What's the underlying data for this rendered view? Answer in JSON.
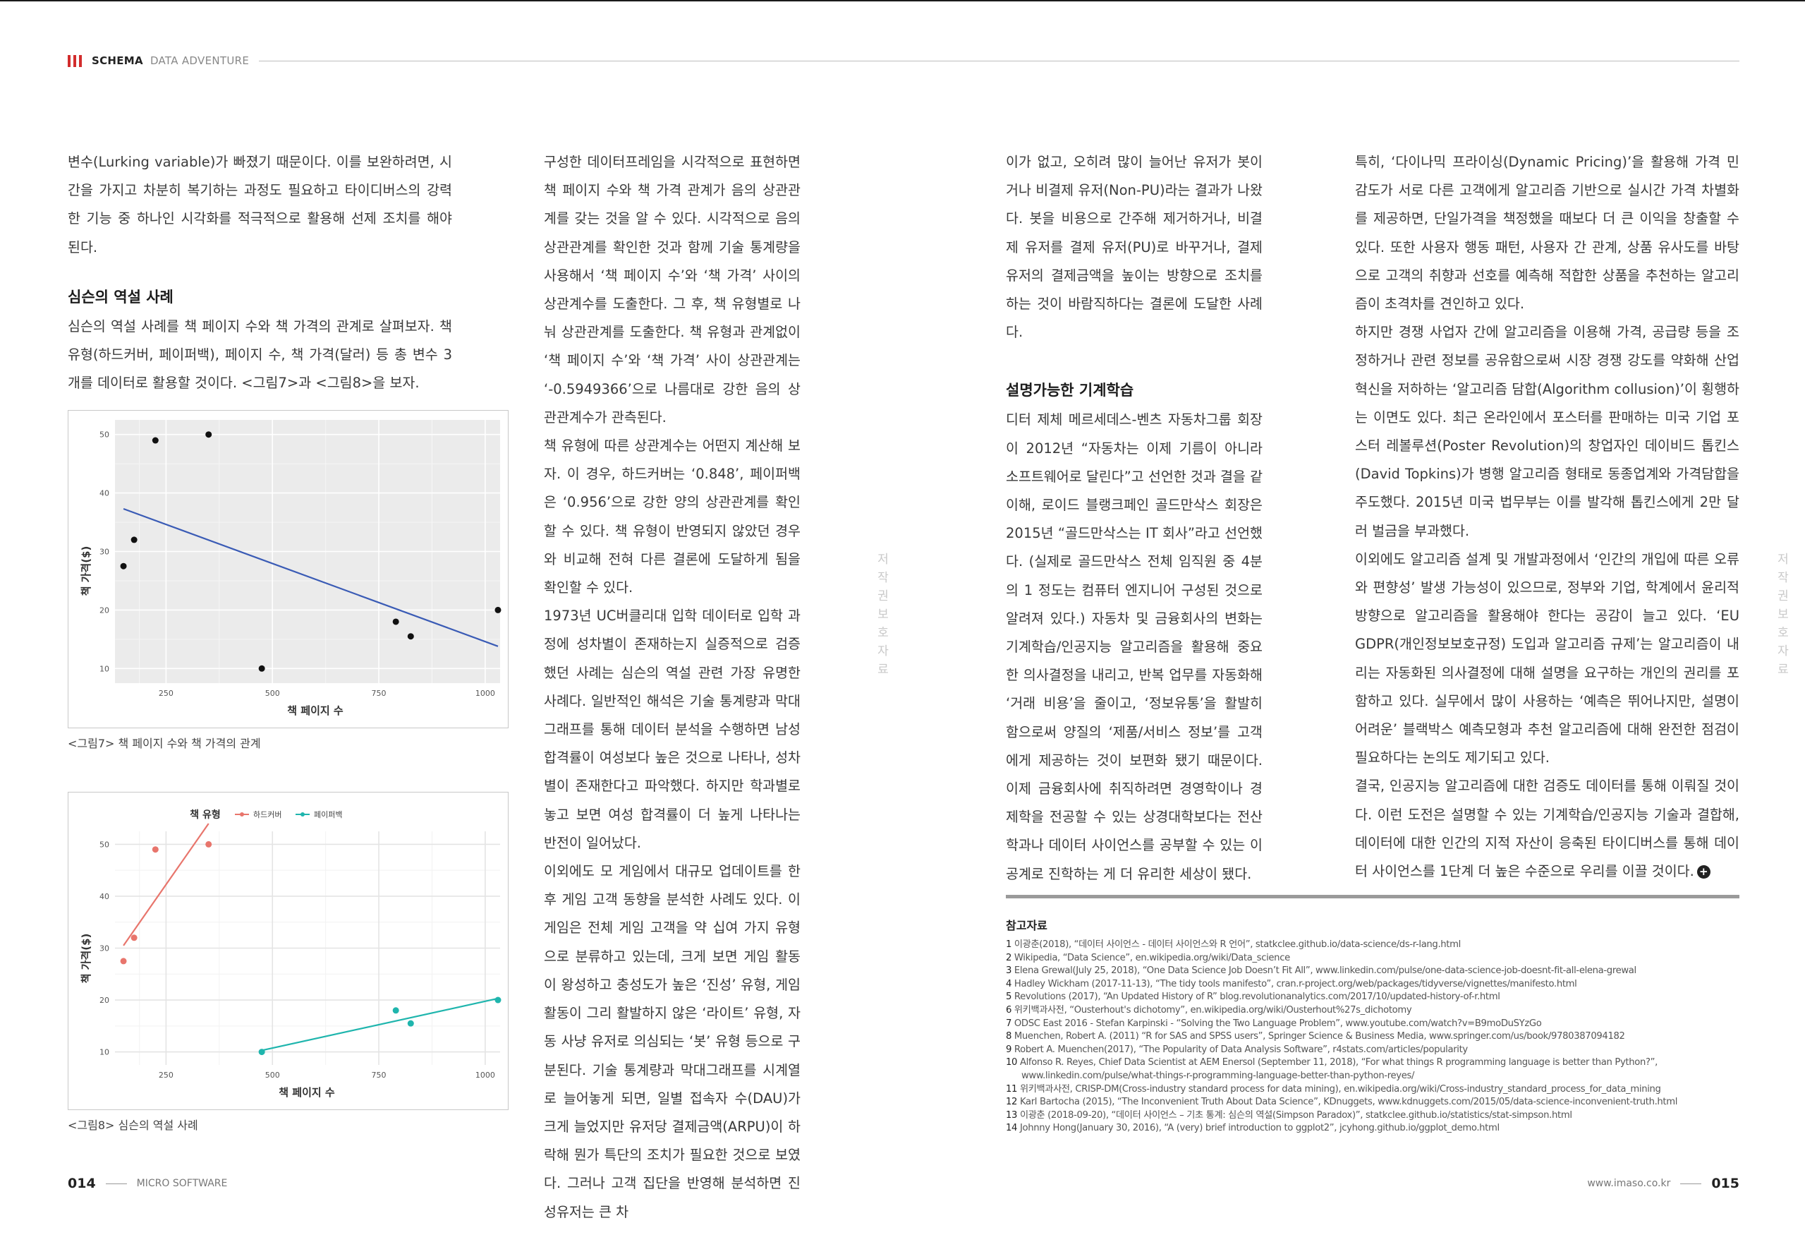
{
  "header": {
    "brand": "SCHEMA",
    "section": "DATA ADVENTURE"
  },
  "col1": {
    "p1": "변수(Lurking variable)가 빠졌기 때문이다. 이를 보완하려면, 시간을 가지고 차분히 복기하는 과정도 필요하고 타이디버스의 강력한 기능 중 하나인 시각화를 적극적으로 활용해 선제 조치를 해야 된다.",
    "h1": "심슨의 역설 사례",
    "p2": "심슨의 역설 사례를 책 페이지 수와 책 가격의 관계로 살펴보자. 책 유형(하드커버, 페이퍼백), 페이지 수, 책 가격(달러) 등 총 변수 3개를 데이터로 활용할 것이다. <그림7>과 <그림8>을 보자."
  },
  "col2": {
    "p1": "구성한 데이터프레임을 시각적으로 표현하면 책 페이지 수와 책 가격 관계가 음의 상관관계를 갖는 것을 알 수 있다. 시각적으로 음의 상관관계를 확인한 것과 함께 기술 통계량을 사용해서 ‘책 페이지 수’와 ‘책 가격’ 사이의 상관계수를 도출한다. 그 후, 책 유형별로 나눠 상관관계를 도출한다. 책 유형과 관계없이 ‘책 페이지 수’와 ‘책 가격’ 사이 상관관계는 ‘-0.5949366’으로 나름대로 강한 음의 상관관계수가 관측된다.",
    "p2": "책 유형에 따른 상관계수는 어떤지 계산해 보자. 이 경우, 하드커버는 ‘0.848’, 페이퍼백은 ‘0.956’으로 강한 양의 상관관계를 확인할 수 있다. 책 유형이 반영되지 않았던 경우와 비교해 전혀 다른 결론에 도달하게 됨을 확인할 수 있다.",
    "p3": "1973년 UC버클리대 입학 데이터로 입학 과정에 성차별이 존재하는지 실증적으로 검증했던 사례는 심슨의 역설 관련 가장 유명한 사례다. 일반적인 해석은 기술 통계량과 막대그래프를 통해 데이터 분석을 수행하면 남성 합격률이 여성보다 높은 것으로 나타나, 성차별이 존재한다고 파악했다. 하지만 학과별로 놓고 보면 여성 합격률이 더 높게 나타나는 반전이 일어났다.",
    "p4": "이외에도 모 게임에서 대규모 업데이트를 한 후 게임 고객 동향을 분석한 사례도 있다. 이 게임은 전체 게임 고객을 약 십여 가지 유형으로 분류하고 있는데, 크게 보면 게임 활동이 왕성하고 충성도가 높은 ‘진성’ 유형, 게임 활동이 그리 활발하지 않은 ‘라이트’ 유형, 자동 사냥 유저로 의심되는 ‘봇’ 유형 등으로 구분된다. 기술 통계량과 막대그래프를 시계열로 늘어놓게 되면, 일별 접속자 수(DAU)가 크게 늘었지만 유저당 결제금액(ARPU)이 하락해 뭔가 특단의 조치가 필요한 것으로 보였다. 그러나 고객 집단을 반영해 분석하면 진성유저는 큰 차"
  },
  "col3": {
    "p1": "이가 없고, 오히려 많이 늘어난 유저가 봇이거나 비결제 유저(Non-PU)라는 결과가 나왔다. 봇을 비용으로 간주해 제거하거나, 비결제 유저를 결제 유저(PU)로 바꾸거나, 결제 유저의 결제금액을 높이는 방향으로 조치를 하는 것이 바람직하다는 결론에 도달한 사례다.",
    "h1": "설명가능한 기계학습",
    "p2": "디터 제체 메르세데스-벤츠 자동차그룹 회장이 2012년 “자동차는 이제 기름이 아니라 소프트웨어로 달린다”고 선언한 것과 결을 같이해, 로이드 블랭크페인 골드만삭스 회장은 2015년 “골드만삭스는 IT 회사”라고 선언했다. (실제로 골드만삭스 전체 임직원 중 4분의 1 정도는 컴퓨터 엔지니어 구성된 것으로 알려져 있다.) 자동차 및 금융회사의 변화는 기계학습/인공지능 알고리즘을 활용해 중요한 의사결정을 내리고, 반복 업무를 자동화해 ‘거래 비용’을 줄이고, ‘정보유통’을 활발히 함으로써 양질의 ‘제품/서비스 정보’를 고객에게 제공하는 것이 보편화 됐기 때문이다. 이제 금융회사에 취직하려면 경영학이나 경제학을 전공할 수 있는 상경대학보다는 전산학과나 데이터 사이언스를 공부할 수 있는 이공계로 진학하는 게 더 유리한 세상이 됐다."
  },
  "col4": {
    "p1": "특히, ‘다이나믹 프라이싱(Dynamic Pricing)’을 활용해 가격 민감도가 서로 다른 고객에게 알고리즘 기반으로 실시간 가격 차별화를 제공하면, 단일가격을 책정했을 때보다 더 큰 이익을 창출할 수 있다. 또한 사용자 행동 패턴, 사용자 간 관계, 상품 유사도를 바탕으로 고객의 취향과 선호를 예측해 적합한 상품을 추천하는 알고리즘이 초격차를 견인하고 있다.",
    "p2": "하지만 경쟁 사업자 간에 알고리즘을 이용해 가격, 공급량 등을 조정하거나 관련 정보를 공유함으로써 시장 경쟁 강도를 약화해 산업 혁신을 저하하는 ‘알고리즘 담합(Algorithm collusion)’이 횡행하는 이면도 있다. 최근 온라인에서 포스터를 판매하는 미국 기업 포스터 레볼루션(Poster Revolution)의 창업자인 데이비드 톱킨스(David Topkins)가 병행 알고리즘 형태로 동종업계와 가격담합을 주도했다. 2015년 미국 법무부는 이를 발각해 톱킨스에게 2만 달러 벌금을 부과했다.",
    "p3": "이외에도 알고리즘 설계 및 개발과정에서 ‘인간의 개입에 따른 오류와 편향성’ 발생 가능성이 있으므로, 정부와 기업, 학계에서 윤리적 방향으로 알고리즘을 활용해야 한다는 공감이 늘고 있다. ‘EU GDPR(개인정보보호규정) 도입과 알고리즘 규제’는 알고리즘이 내리는 자동화된 의사결정에 대해 설명을 요구하는 개인의 권리를 포함하고 있다. 실무에서 많이 사용하는 ‘예측은 뛰어나지만, 설명이 어려운’ 블랙박스 예측모형과 추천 알고리즘에 대해 완전한 점검이 필요하다는 논의도 제기되고 있다.",
    "p4": "결국, 인공지능 알고리즘에 대한 검증도 데이터를 통해 이뤄질 것이다. 이런 도전은 설명할 수 있는 기계학습/인공지능 기술과 결합해, 데이터에 대한 인간의 지적 자산이 응축된 타이디버스를 통해 데이터 사이언스를 1단계 더 높은 수준으로 우리를 이끌 것이다.",
    "end_icon": "plus-circle-icon"
  },
  "watermark": {
    "text": "저작권 보호 자료"
  },
  "figures": {
    "fig7_caption": "<그림7> 책 페이지 수와 책 가격의 관계",
    "fig8_caption": "<그림8> 심슨의 역설 사례"
  },
  "chart_data": [
    {
      "type": "scatter",
      "title": "",
      "xlabel": "책 페이지 수",
      "ylabel": "책 가격($)",
      "xlim": [
        130,
        1035
      ],
      "ylim": [
        7.5,
        52.5
      ],
      "xticks": [
        250,
        500,
        750,
        1000
      ],
      "yticks": [
        10,
        20,
        30,
        40,
        50
      ],
      "grid": true,
      "background": "#ebebeb",
      "points": [
        [
          150,
          27.5
        ],
        [
          175,
          32
        ],
        [
          225,
          49
        ],
        [
          350,
          50
        ],
        [
          475,
          10
        ],
        [
          790,
          18
        ],
        [
          825,
          15.5
        ],
        [
          1030,
          20
        ]
      ],
      "fit_line": {
        "x": [
          150,
          1030
        ],
        "y": [
          37.3,
          13.8
        ],
        "color": "#3a5bb5"
      }
    },
    {
      "type": "scatter",
      "title": "",
      "legend_title": "책 유형",
      "legend_position": "top",
      "xlabel": "책 페이지 수",
      "ylabel": "책 가격($)",
      "xlim": [
        130,
        1035
      ],
      "ylim": [
        7.5,
        52.5
      ],
      "xticks": [
        250,
        500,
        750,
        1000
      ],
      "yticks": [
        10,
        20,
        30,
        40,
        50
      ],
      "grid": true,
      "background": "#ffffff",
      "series": [
        {
          "name": "하드커버",
          "color": "#e8756c",
          "points": [
            [
              150,
              27.5
            ],
            [
              175,
              32
            ],
            [
              225,
              49
            ],
            [
              350,
              50
            ]
          ],
          "fit_line": {
            "x": [
              150,
              350
            ],
            "y": [
              30.5,
              54.0
            ]
          }
        },
        {
          "name": "페이퍼백",
          "color": "#1fb5ad",
          "points": [
            [
              475,
              10
            ],
            [
              790,
              18
            ],
            [
              825,
              15.5
            ],
            [
              1030,
              20
            ]
          ],
          "fit_line": {
            "x": [
              475,
              1030
            ],
            "y": [
              10.3,
              20.3
            ]
          }
        }
      ]
    }
  ],
  "references": {
    "title": "참고자료",
    "items": [
      {
        "num": "1",
        "text": "이광춘(2018), “데이터 사이언스 - 데이터 사이언스와 R 언어”, statkclee.github.io/data-science/ds-r-lang.html"
      },
      {
        "num": "2",
        "text": "Wikipedia, “Data Science”, en.wikipedia.org/wiki/Data_science"
      },
      {
        "num": "3",
        "text": "Elena Grewal(July 25, 2018), “One Data Science Job Doesn’t Fit All”, www.linkedin.com/pulse/one-data-science-job-doesnt-fit-all-elena-grewal"
      },
      {
        "num": "4",
        "text": "Hadley Wickham (2017-11-13), “The tidy tools manifesto”, cran.r-project.org/web/packages/tidyverse/vignettes/manifesto.html"
      },
      {
        "num": "5",
        "text": "Revolutions (2017), “An Updated History of R” blog.revolutionanalytics.com/2017/10/updated-history-of-r.html"
      },
      {
        "num": "6",
        "text": "위키백과사전, “Ousterhout's dichotomy”, en.wikipedia.org/wiki/Ousterhout%27s_dichotomy"
      },
      {
        "num": "7",
        "text": "ODSC East 2016 - Stefan Karpinski - “Solving the Two Language Problem”, www.youtube.com/watch?v=B9moDuSYzGo"
      },
      {
        "num": "8",
        "text": "Muenchen, Robert A. (2011) “R for SAS and SPSS users”, Springer Science & Business Media, www.springer.com/us/book/9780387094182"
      },
      {
        "num": "9",
        "text": "Robert A. Muenchen(2017), “The Popularity of Data Analysis Software”, r4stats.com/articles/popularity"
      },
      {
        "num": "10",
        "text": "Alfonso R. Reyes, Chief Data Scientist at AEM Enersol (September 11, 2018), “For what things R programming language is better than Python?”, www.linkedin.com/pulse/what-things-r-programming-language-better-than-python-reyes/"
      },
      {
        "num": "11",
        "text": "위키백과사전, CRISP-DM(Cross-industry standard process for data mining), en.wikipedia.org/wiki/Cross-industry_standard_process_for_data_mining"
      },
      {
        "num": "12",
        "text": "Karl Bartocha (2015), “The Inconvenient Truth About Data Science”, KDnuggets, www.kdnuggets.com/2015/05/data-science-inconvenient-truth.html"
      },
      {
        "num": "13",
        "text": "이광춘 (2018-09-20), “데이터 사이언스 – 기초 통계: 심슨의 역설(Simpson Paradox)”, statkclee.github.io/statistics/stat-simpson.html"
      },
      {
        "num": "14",
        "text": "Johnny Hong(January 30, 2016), “A (very) brief introduction to ggplot2”, jcyhong.github.io/ggplot_demo.html"
      }
    ]
  },
  "footer": {
    "left_page": "014",
    "left_text": "MICRO SOFTWARE",
    "right_url": "www.imaso.co.kr",
    "right_page": "015"
  }
}
